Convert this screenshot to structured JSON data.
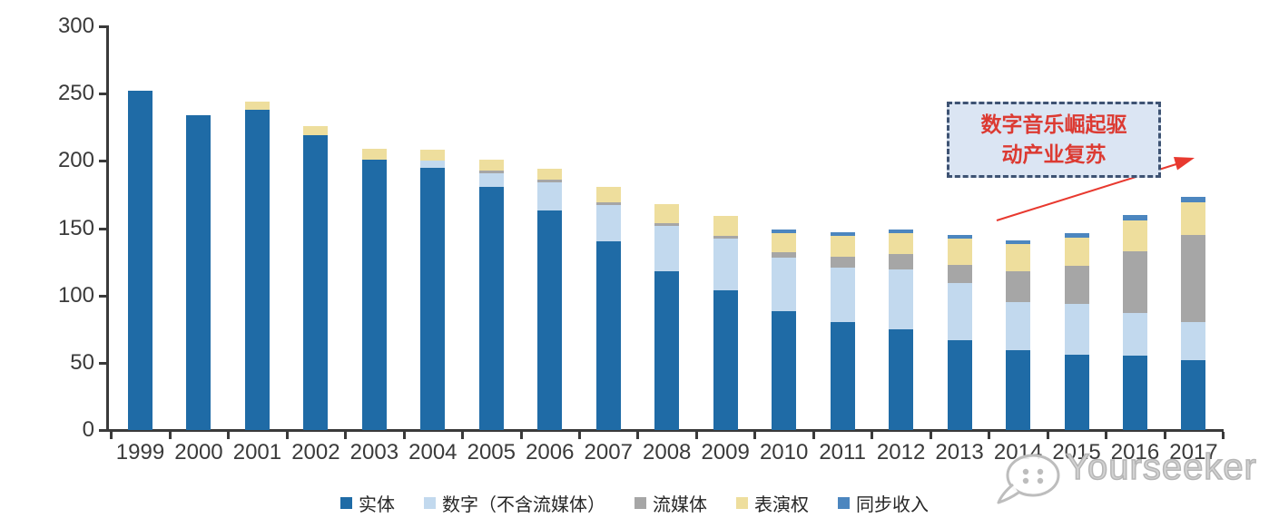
{
  "chart_data": {
    "type": "bar",
    "stacked": true,
    "title": "",
    "xlabel": "",
    "ylabel": "",
    "categories": [
      "1999",
      "2000",
      "2001",
      "2002",
      "2003",
      "2004",
      "2005",
      "2006",
      "2007",
      "2008",
      "2009",
      "2010",
      "2011",
      "2012",
      "2013",
      "2014",
      "2015",
      "2016",
      "2017"
    ],
    "series": [
      {
        "name": "实体",
        "color": "#1F6BA6",
        "values": [
          252,
          234,
          238,
          219,
          201,
          195,
          181,
          163,
          140,
          118,
          104,
          88,
          80,
          75,
          67,
          59,
          56,
          55,
          52
        ]
      },
      {
        "name": "数字（不含流媒体）",
        "color": "#C2D9EE",
        "values": [
          0,
          0,
          0,
          0,
          0,
          5,
          10,
          21,
          27,
          34,
          38,
          40,
          41,
          44,
          42,
          36,
          38,
          32,
          28
        ]
      },
      {
        "name": "流媒体",
        "color": "#A6A6A6",
        "values": [
          0,
          0,
          0,
          0,
          0,
          0,
          2,
          2,
          2,
          2,
          2,
          4,
          8,
          12,
          14,
          23,
          28,
          46,
          65
        ]
      },
      {
        "name": "表演权",
        "color": "#EEDE9D",
        "values": [
          0,
          0,
          6,
          7,
          8,
          8,
          8,
          8,
          12,
          14,
          15,
          14,
          15,
          15,
          19,
          20,
          21,
          23,
          24
        ]
      },
      {
        "name": "同步收入",
        "color": "#4C86BF",
        "values": [
          0,
          0,
          0,
          0,
          0,
          0,
          0,
          0,
          0,
          0,
          0,
          3,
          3,
          3,
          3,
          3,
          3,
          4,
          4
        ]
      }
    ],
    "ylim": [
      0,
      300
    ],
    "yticks": [
      0,
      50,
      100,
      150,
      200,
      250,
      300
    ],
    "grid": false,
    "legend_position": "bottom"
  },
  "annotation": {
    "line1": "数字音乐崛起驱",
    "line2": "动产业复苏",
    "text_color": "#DC3A32",
    "box_fill": "#DBE5F3",
    "box_border": "#3E5373",
    "arrow_color": "#E8392F"
  },
  "watermark": {
    "text": "Yourseeker",
    "logo": "speech-bubble-face-icon",
    "color": "#BDBDBD"
  },
  "axis_color": "#3A3A3A",
  "label_color": "#3A3A3A"
}
